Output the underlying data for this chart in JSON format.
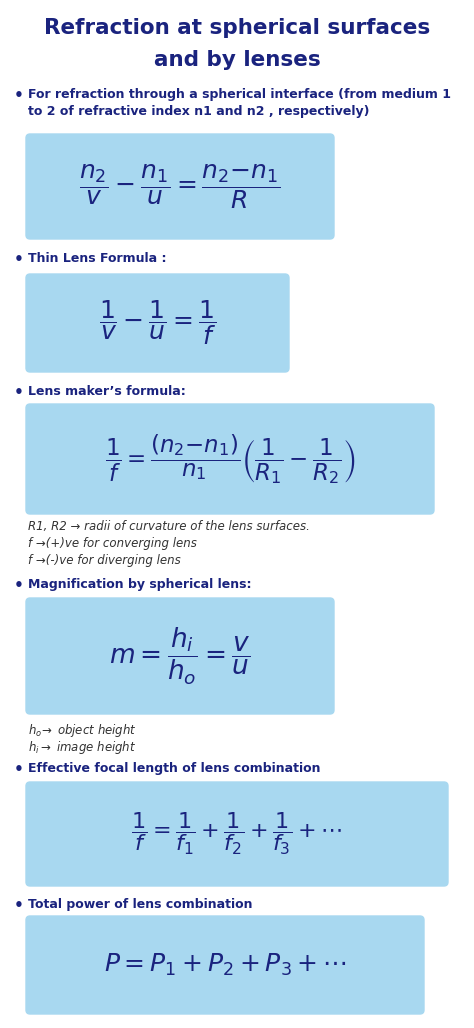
{
  "title_line1": "Refraction at spherical surfaces",
  "title_line2": "and by lenses",
  "bg_color": "#ffffff",
  "title_color": "#1a237e",
  "text_color": "#1a237e",
  "note_color": "#333333",
  "formula_bg": "#a8d8f0",
  "bullet1_text": "For refraction through a spherical interface (from medium 1\nto 2 of refractive index n1 and n2 , respectively)",
  "formula1": "$\\dfrac{n_2}{v} - \\dfrac{n_1}{u} = \\dfrac{n_2{-}n_1}{R}$",
  "bullet2_text": "Thin Lens Formula :",
  "formula2": "$\\dfrac{1}{v} - \\dfrac{1}{u} = \\dfrac{1}{f}$",
  "bullet3_text": "Lens maker’s formula:",
  "formula3": "$\\dfrac{1}{f} = \\dfrac{(n_2{-}n_1)}{n_1} \\left(\\dfrac{1}{R_1} - \\dfrac{1}{R_2}\\right)$",
  "note3_line1": "R1, R2 → radii of curvature of the lens surfaces.",
  "note3_line2": "f →(+)ve for converging lens",
  "note3_line3": "f →(-)ve for diverging lens",
  "bullet4_text": "Magnification by spherical lens:",
  "formula4": "$m = \\dfrac{h_i}{h_o} = \\dfrac{v}{u}$",
  "note4_line1": "$h_o\\!\\rightarrow$ object height",
  "note4_line2": "$h_i \\rightarrow$ image height",
  "bullet5_text": "Effective focal length of lens combination",
  "formula5": "$\\dfrac{1}{f} = \\dfrac{1}{f_1} + \\dfrac{1}{f_2} + \\dfrac{1}{f_3} + \\cdots$",
  "bullet6_text": "Total power of lens combination",
  "formula6": "$P = P_1 + P_2 + P_3 +\\cdots$"
}
